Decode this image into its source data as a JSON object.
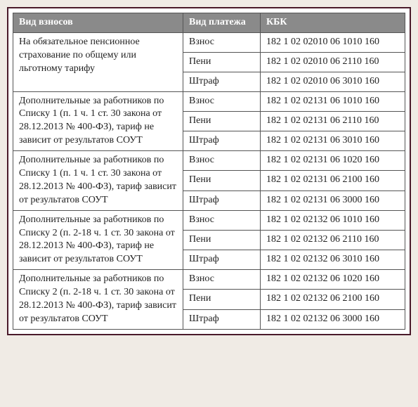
{
  "headers": {
    "col1": "Вид взносов",
    "col2": "Вид платежа",
    "col3": "КБК"
  },
  "rows": [
    {
      "type": "На обязательное пенсионное страхование по общему или льготному тарифу",
      "rowspan": 3,
      "pay": "Взнос",
      "kbk": "182 1 02 02010 06 1010 160"
    },
    {
      "pay": "Пени",
      "kbk": "182 1 02 02010 06 2110 160"
    },
    {
      "pay": "Штраф",
      "kbk": "182 1 02 02010 06 3010 160"
    },
    {
      "type": "Дополнительные за работников по Списку 1 (п. 1 ч. 1 ст. 30 закона от 28.12.2013 № 400-ФЗ), тариф не зависит от результатов СОУТ",
      "rowspan": 3,
      "pay": "Взнос",
      "kbk": "182 1 02 02131 06 1010 160"
    },
    {
      "pay": "Пени",
      "kbk": "182 1 02 02131 06 2110 160"
    },
    {
      "pay": "Штраф",
      "kbk": "182 1 02 02131 06 3010 160"
    },
    {
      "type": "Дополнительные за работников по Списку 1 (п. 1 ч. 1 ст. 30 закона от 28.12.2013 № 400-ФЗ), тариф зависит от результатов СОУТ",
      "rowspan": 3,
      "pay": "Взнос",
      "kbk": "182 1 02 02131 06 1020 160"
    },
    {
      "pay": "Пени",
      "kbk": "182 1 02 02131 06 2100 160"
    },
    {
      "pay": "Штраф",
      "kbk": "182 1 02 02131 06 3000 160"
    },
    {
      "type": "Дополнительные за работников по Списку 2 (п. 2-18 ч. 1 ст. 30 закона от 28.12.2013 № 400-ФЗ), тариф не зависит от результатов СОУТ",
      "rowspan": 3,
      "pay": "Взнос",
      "kbk": "182 1 02 02132 06 1010 160"
    },
    {
      "pay": "Пени",
      "kbk": "182 1 02 02132 06 2110 160"
    },
    {
      "pay": "Штраф",
      "kbk": "182 1 02 02132 06 3010 160"
    },
    {
      "type": "Дополнительные за работников по Списку 2 (п. 2-18 ч. 1 ст. 30 закона от 28.12.2013 № 400-ФЗ), тариф зависит от результатов СОУТ",
      "rowspan": 3,
      "pay": "Взнос",
      "kbk": "182 1 02 02132 06 1020 160"
    },
    {
      "pay": "Пени",
      "kbk": "182 1 02 02132 06 2100 160"
    },
    {
      "pay": "Штраф",
      "kbk": "182 1 02 02132 06 3000 160"
    }
  ]
}
